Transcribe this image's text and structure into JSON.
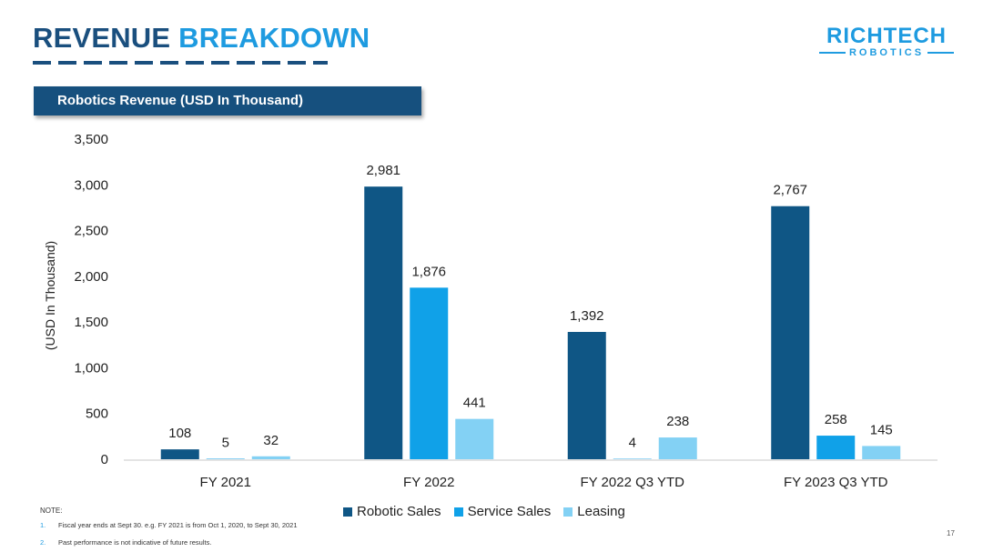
{
  "slide": {
    "title_part1": "REVENUE",
    "title_part2": "BREAKDOWN",
    "banner": "Robotics Revenue (USD In Thousand)",
    "page_number": "17"
  },
  "logo": {
    "main": "RICHTECH",
    "sub": "ROBOTICS"
  },
  "notes": {
    "title": "NOTE:",
    "items": [
      {
        "num": "1.",
        "text": "Fiscal year ends at Sept 30. e.g.  FY 2021 is from Oct 1, 2020, to Sept 30, 2021"
      },
      {
        "num": "2.",
        "text": "Past performance is not indicative of future results."
      }
    ]
  },
  "chart_data": {
    "type": "bar",
    "title": "",
    "xlabel": "",
    "ylabel": "(USD In Thousand)",
    "ylim": [
      0,
      3500
    ],
    "yticks": [
      0,
      500,
      1000,
      1500,
      2000,
      2500,
      3000,
      3500
    ],
    "ytick_labels": [
      "0",
      "500",
      "1,000",
      "1,500",
      "2,000",
      "2,500",
      "3,000",
      "3,500"
    ],
    "grid": false,
    "legend_position": "bottom",
    "categories": [
      "FY 2021",
      "FY 2022",
      "FY 2022 Q3 YTD",
      "FY 2023 Q3 YTD"
    ],
    "series": [
      {
        "name": "Robotic Sales",
        "color": "#0f5685",
        "values": [
          108,
          2981,
          1392,
          2767
        ],
        "labels": [
          "108",
          "2,981",
          "1,392",
          "2,767"
        ]
      },
      {
        "name": "Service Sales",
        "color": "#10a1e8",
        "values": [
          5,
          1876,
          4,
          258
        ],
        "labels": [
          "5",
          "1,876",
          "4",
          "258"
        ]
      },
      {
        "name": "Leasing",
        "color": "#83d1f4",
        "values": [
          32,
          441,
          238,
          145
        ],
        "labels": [
          "32",
          "441",
          "238",
          "145"
        ]
      }
    ]
  }
}
